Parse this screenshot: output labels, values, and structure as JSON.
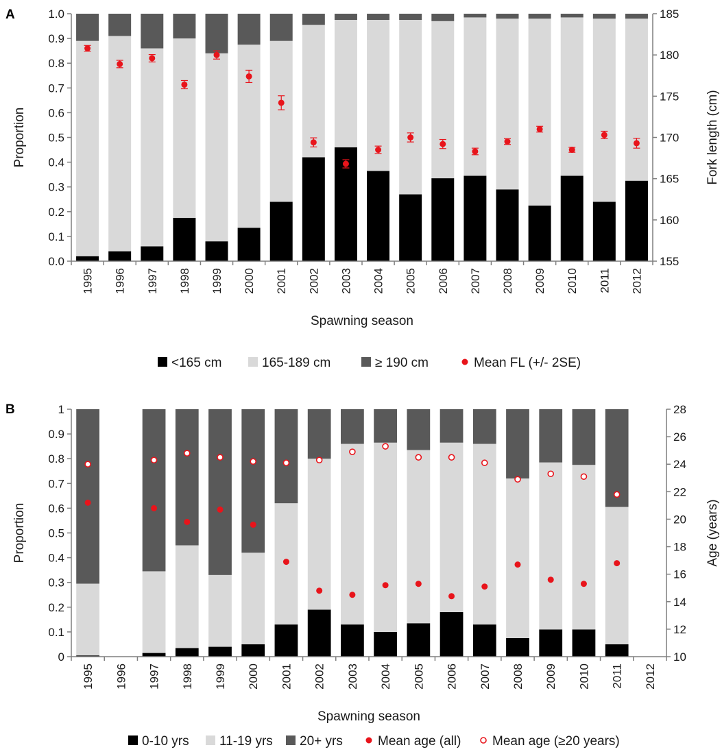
{
  "chart_data": [
    {
      "panel": "A",
      "type": "bar",
      "stacked": true,
      "categories": [
        "1995",
        "1996",
        "1997",
        "1998",
        "1999",
        "2000",
        "2001",
        "2002",
        "2003",
        "2004",
        "2005",
        "2006",
        "2007",
        "2008",
        "2009",
        "2010",
        "2011",
        "2012"
      ],
      "series": [
        {
          "name": "<165 cm",
          "color": "#000000",
          "values": [
            0.02,
            0.04,
            0.06,
            0.175,
            0.08,
            0.135,
            0.24,
            0.42,
            0.46,
            0.365,
            0.27,
            0.335,
            0.345,
            0.29,
            0.225,
            0.345,
            0.24,
            0.325
          ]
        },
        {
          "name": "165-189 cm",
          "color": "#d9d9d9",
          "values": [
            0.87,
            0.87,
            0.8,
            0.725,
            0.76,
            0.74,
            0.65,
            0.535,
            0.515,
            0.61,
            0.705,
            0.635,
            0.64,
            0.69,
            0.755,
            0.64,
            0.74,
            0.655
          ]
        },
        {
          "name": "≥ 190 cm",
          "color": "#595959",
          "values": [
            0.11,
            0.09,
            0.14,
            0.1,
            0.16,
            0.125,
            0.11,
            0.045,
            0.025,
            0.025,
            0.025,
            0.03,
            0.015,
            0.02,
            0.02,
            0.015,
            0.02,
            0.02
          ]
        }
      ],
      "points": [
        {
          "name": "Mean FL (+/- 2SE)",
          "color": "#e8141b",
          "axis": "right",
          "filled": true,
          "values": [
            180.8,
            178.9,
            179.6,
            176.4,
            180.0,
            177.4,
            174.2,
            169.4,
            166.8,
            168.5,
            170.0,
            169.2,
            168.3,
            169.5,
            171.0,
            168.5,
            170.3,
            169.3
          ],
          "errors": [
            0.35,
            0.45,
            0.45,
            0.5,
            0.5,
            0.75,
            0.85,
            0.55,
            0.5,
            0.45,
            0.55,
            0.55,
            0.4,
            0.35,
            0.35,
            0.3,
            0.45,
            0.6
          ]
        }
      ],
      "xlabel": "Spawning season",
      "ylabel": "Proportion",
      "y2label": "Fork length (cm)",
      "ylim": [
        0,
        1
      ],
      "yticks": [
        "0.0",
        "0.1",
        "0.2",
        "0.3",
        "0.4",
        "0.5",
        "0.6",
        "0.7",
        "0.8",
        "0.9",
        "1.0"
      ],
      "y2lim": [
        155,
        185
      ],
      "y2ticks": [
        "155",
        "160",
        "165",
        "170",
        "175",
        "180",
        "185"
      ],
      "legend": [
        "<165 cm",
        "165-189 cm",
        "≥ 190 cm",
        "Mean FL (+/- 2SE)"
      ]
    },
    {
      "panel": "B",
      "type": "bar",
      "stacked": true,
      "categories": [
        "1995",
        "1996",
        "1997",
        "1998",
        "1999",
        "2000",
        "2001",
        "2002",
        "2003",
        "2004",
        "2005",
        "2006",
        "2007",
        "2008",
        "2009",
        "2010",
        "2011",
        "2012"
      ],
      "series": [
        {
          "name": "0-10 yrs",
          "color": "#000000",
          "values": [
            0.005,
            null,
            0.015,
            0.035,
            0.04,
            0.05,
            0.13,
            0.19,
            0.13,
            0.1,
            0.135,
            0.18,
            0.13,
            0.075,
            0.11,
            0.11,
            0.05,
            null
          ]
        },
        {
          "name": "11-19 yrs",
          "color": "#d9d9d9",
          "values": [
            0.29,
            null,
            0.33,
            0.415,
            0.29,
            0.37,
            0.49,
            0.61,
            0.73,
            0.765,
            0.7,
            0.685,
            0.73,
            0.645,
            0.675,
            0.665,
            0.555,
            null
          ]
        },
        {
          "name": "20+ yrs",
          "color": "#595959",
          "values": [
            0.705,
            null,
            0.655,
            0.55,
            0.67,
            0.58,
            0.38,
            0.2,
            0.14,
            0.135,
            0.165,
            0.135,
            0.14,
            0.28,
            0.215,
            0.225,
            0.395,
            null
          ]
        }
      ],
      "points": [
        {
          "name": "Mean age (all)",
          "color": "#e8141b",
          "axis": "right",
          "filled": true,
          "values": [
            21.2,
            null,
            20.8,
            19.8,
            20.7,
            19.6,
            16.9,
            14.8,
            14.5,
            15.2,
            15.3,
            14.4,
            15.1,
            16.7,
            15.6,
            15.3,
            16.8,
            null
          ]
        },
        {
          "name": "Mean age (≥20 years)",
          "color": "#e8141b",
          "axis": "right",
          "filled": false,
          "values": [
            24.0,
            null,
            24.3,
            24.8,
            24.5,
            24.2,
            24.1,
            24.3,
            24.9,
            25.3,
            24.5,
            24.5,
            24.1,
            22.9,
            23.3,
            23.1,
            21.8,
            null
          ]
        }
      ],
      "xlabel": "Spawning season",
      "ylabel": "Proportion",
      "y2label": "Age (years)",
      "ylim": [
        0,
        1
      ],
      "yticks": [
        "0",
        "0.1",
        "0.2",
        "0.3",
        "0.4",
        "0.5",
        "0.6",
        "0.7",
        "0.8",
        "0.9",
        "1"
      ],
      "y2lim": [
        10,
        28
      ],
      "y2ticks": [
        "10",
        "12",
        "14",
        "16",
        "18",
        "20",
        "22",
        "24",
        "26",
        "28"
      ],
      "legend": [
        "0-10 yrs",
        "11-19 yrs",
        "20+ yrs",
        "Mean age (all)",
        "Mean age (≥20 years)"
      ]
    }
  ]
}
